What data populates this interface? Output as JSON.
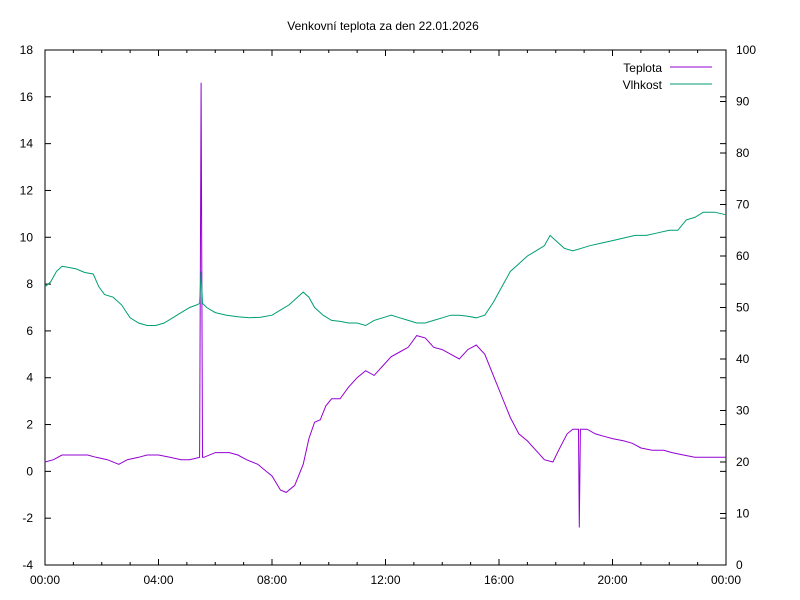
{
  "chart_data": {
    "type": "line",
    "title": "Venkovní teplota za den 22.01.2026",
    "x_tick_labels": [
      "00:00",
      "04:00",
      "08:00",
      "12:00",
      "16:00",
      "20:00",
      "00:00"
    ],
    "x_range_hours": [
      0,
      24
    ],
    "y_left": {
      "ylim": [
        -4,
        18
      ],
      "ticks": [
        -4,
        -2,
        0,
        2,
        4,
        6,
        8,
        10,
        12,
        14,
        16,
        18
      ]
    },
    "y_right": {
      "ylim": [
        0,
        100
      ],
      "ticks": [
        0,
        10,
        20,
        30,
        40,
        50,
        60,
        70,
        80,
        90,
        100
      ]
    },
    "grid": false,
    "legend_position": "top-right",
    "series": [
      {
        "name": "Teplota",
        "axis": "left",
        "color": "#9400d3",
        "points": [
          [
            0,
            0.4
          ],
          [
            0.3,
            0.5
          ],
          [
            0.6,
            0.7
          ],
          [
            1.0,
            0.7
          ],
          [
            1.5,
            0.7
          ],
          [
            1.8,
            0.6
          ],
          [
            2.2,
            0.5
          ],
          [
            2.6,
            0.3
          ],
          [
            2.9,
            0.5
          ],
          [
            3.3,
            0.6
          ],
          [
            3.6,
            0.7
          ],
          [
            4.0,
            0.7
          ],
          [
            4.4,
            0.6
          ],
          [
            4.8,
            0.5
          ],
          [
            5.1,
            0.5
          ],
          [
            5.45,
            0.6
          ],
          [
            5.5,
            16.6
          ],
          [
            5.55,
            0.6
          ],
          [
            5.6,
            0.6
          ],
          [
            6.0,
            0.8
          ],
          [
            6.5,
            0.8
          ],
          [
            6.8,
            0.7
          ],
          [
            7.1,
            0.5
          ],
          [
            7.5,
            0.3
          ],
          [
            7.8,
            0.0
          ],
          [
            8.0,
            -0.2
          ],
          [
            8.3,
            -0.8
          ],
          [
            8.5,
            -0.9
          ],
          [
            8.8,
            -0.6
          ],
          [
            9.1,
            0.3
          ],
          [
            9.3,
            1.4
          ],
          [
            9.5,
            2.1
          ],
          [
            9.7,
            2.2
          ],
          [
            9.9,
            2.8
          ],
          [
            10.1,
            3.1
          ],
          [
            10.4,
            3.1
          ],
          [
            10.7,
            3.6
          ],
          [
            11.0,
            4.0
          ],
          [
            11.3,
            4.3
          ],
          [
            11.6,
            4.1
          ],
          [
            11.9,
            4.5
          ],
          [
            12.2,
            4.9
          ],
          [
            12.5,
            5.1
          ],
          [
            12.8,
            5.3
          ],
          [
            13.1,
            5.8
          ],
          [
            13.4,
            5.7
          ],
          [
            13.7,
            5.3
          ],
          [
            14.0,
            5.2
          ],
          [
            14.3,
            5.0
          ],
          [
            14.6,
            4.8
          ],
          [
            14.9,
            5.2
          ],
          [
            15.2,
            5.4
          ],
          [
            15.5,
            5.0
          ],
          [
            15.8,
            4.1
          ],
          [
            16.1,
            3.2
          ],
          [
            16.4,
            2.3
          ],
          [
            16.7,
            1.6
          ],
          [
            17.0,
            1.3
          ],
          [
            17.3,
            0.9
          ],
          [
            17.6,
            0.5
          ],
          [
            17.9,
            0.4
          ],
          [
            18.1,
            0.9
          ],
          [
            18.4,
            1.6
          ],
          [
            18.6,
            1.8
          ],
          [
            18.8,
            1.8
          ],
          [
            18.83,
            -2.4
          ],
          [
            18.87,
            1.8
          ],
          [
            19.1,
            1.8
          ],
          [
            19.4,
            1.6
          ],
          [
            19.7,
            1.5
          ],
          [
            20.0,
            1.4
          ],
          [
            20.4,
            1.3
          ],
          [
            20.7,
            1.2
          ],
          [
            21.0,
            1.0
          ],
          [
            21.4,
            0.9
          ],
          [
            21.8,
            0.9
          ],
          [
            22.1,
            0.8
          ],
          [
            22.5,
            0.7
          ],
          [
            22.9,
            0.6
          ],
          [
            23.3,
            0.6
          ],
          [
            23.7,
            0.6
          ],
          [
            24.0,
            0.6
          ]
        ]
      },
      {
        "name": "Vlhkost",
        "axis": "right",
        "color": "#009e73",
        "points": [
          [
            0,
            54
          ],
          [
            0.2,
            55
          ],
          [
            0.4,
            57
          ],
          [
            0.6,
            58
          ],
          [
            0.8,
            57.8
          ],
          [
            1.1,
            57.5
          ],
          [
            1.4,
            56.8
          ],
          [
            1.7,
            56.5
          ],
          [
            1.9,
            54
          ],
          [
            2.1,
            52.5
          ],
          [
            2.4,
            52
          ],
          [
            2.7,
            50.5
          ],
          [
            3.0,
            48
          ],
          [
            3.3,
            47
          ],
          [
            3.6,
            46.5
          ],
          [
            3.9,
            46.5
          ],
          [
            4.2,
            47
          ],
          [
            4.5,
            48
          ],
          [
            4.8,
            49
          ],
          [
            5.1,
            50
          ],
          [
            5.35,
            50.5
          ],
          [
            5.45,
            50.8
          ],
          [
            5.5,
            57
          ],
          [
            5.55,
            50.8
          ],
          [
            5.7,
            50
          ],
          [
            6.0,
            49
          ],
          [
            6.4,
            48.5
          ],
          [
            6.8,
            48.2
          ],
          [
            7.2,
            48
          ],
          [
            7.6,
            48.1
          ],
          [
            8.0,
            48.5
          ],
          [
            8.3,
            49.5
          ],
          [
            8.6,
            50.5
          ],
          [
            8.9,
            52
          ],
          [
            9.1,
            53
          ],
          [
            9.3,
            52
          ],
          [
            9.5,
            50
          ],
          [
            9.8,
            48.5
          ],
          [
            10.1,
            47.5
          ],
          [
            10.4,
            47.3
          ],
          [
            10.7,
            47
          ],
          [
            11.0,
            47
          ],
          [
            11.3,
            46.5
          ],
          [
            11.6,
            47.5
          ],
          [
            11.9,
            48
          ],
          [
            12.2,
            48.5
          ],
          [
            12.5,
            48
          ],
          [
            12.8,
            47.5
          ],
          [
            13.1,
            47
          ],
          [
            13.4,
            47
          ],
          [
            13.7,
            47.5
          ],
          [
            14.0,
            48
          ],
          [
            14.3,
            48.5
          ],
          [
            14.6,
            48.5
          ],
          [
            14.9,
            48.3
          ],
          [
            15.2,
            48
          ],
          [
            15.5,
            48.5
          ],
          [
            15.8,
            51
          ],
          [
            16.1,
            54
          ],
          [
            16.4,
            57
          ],
          [
            16.7,
            58.5
          ],
          [
            17.0,
            60
          ],
          [
            17.3,
            61
          ],
          [
            17.6,
            62
          ],
          [
            17.8,
            64
          ],
          [
            18.0,
            63
          ],
          [
            18.3,
            61.5
          ],
          [
            18.6,
            61
          ],
          [
            18.9,
            61.5
          ],
          [
            19.2,
            62
          ],
          [
            19.6,
            62.5
          ],
          [
            20.0,
            63
          ],
          [
            20.4,
            63.5
          ],
          [
            20.8,
            64
          ],
          [
            21.2,
            64
          ],
          [
            21.6,
            64.5
          ],
          [
            22.0,
            65
          ],
          [
            22.3,
            65
          ],
          [
            22.6,
            67
          ],
          [
            22.9,
            67.5
          ],
          [
            23.2,
            68.5
          ],
          [
            23.6,
            68.5
          ],
          [
            24.0,
            68
          ]
        ]
      }
    ]
  }
}
